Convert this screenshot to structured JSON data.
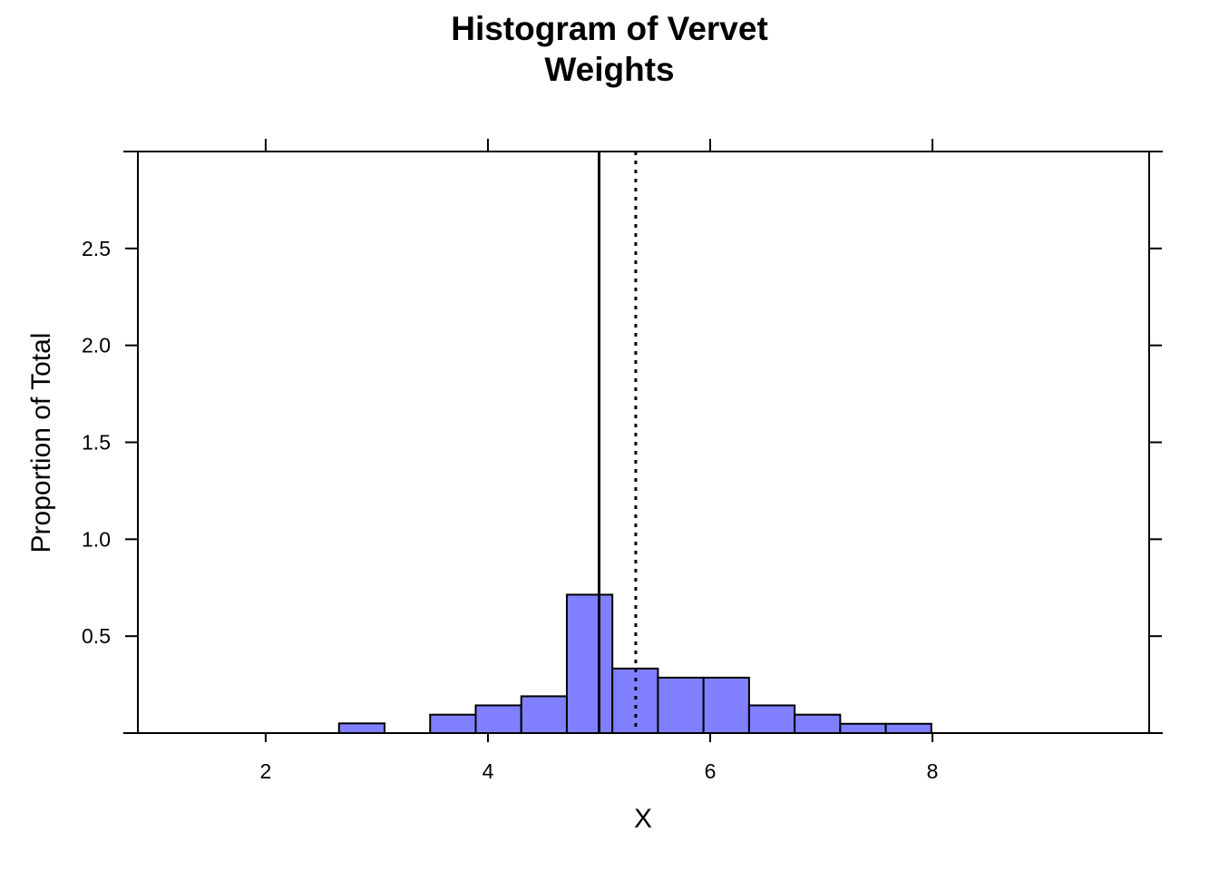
{
  "chart_data": {
    "type": "bar",
    "title_lines": [
      "Histogram of Vervet",
      "Weights"
    ],
    "xlabel": "X",
    "ylabel": "Proportion of Total",
    "xlim": [
      0.85,
      9.95
    ],
    "ylim": [
      0,
      3.0
    ],
    "x_ticks": [
      2,
      4,
      6,
      8
    ],
    "y_ticks": [
      0.5,
      1.0,
      1.5,
      2.0,
      2.5
    ],
    "y_tick_labels": [
      "0.5",
      "1.0",
      "1.5",
      "2.0",
      "2.5"
    ],
    "bins": [
      {
        "x0": 1.34,
        "x1": 1.75,
        "value": 0.0
      },
      {
        "x0": 1.75,
        "x1": 2.16,
        "value": 0.0
      },
      {
        "x0": 2.16,
        "x1": 2.57,
        "value": 0.0
      },
      {
        "x0": 2.57,
        "x1": 2.66,
        "value": 0.0
      },
      {
        "x0": 2.66,
        "x1": 3.07,
        "value": 0.05
      },
      {
        "x0": 3.07,
        "x1": 3.48,
        "value": 0.0
      },
      {
        "x0": 3.48,
        "x1": 3.89,
        "value": 0.095
      },
      {
        "x0": 3.89,
        "x1": 4.3,
        "value": 0.143
      },
      {
        "x0": 4.3,
        "x1": 4.71,
        "value": 0.19
      },
      {
        "x0": 4.71,
        "x1": 5.12,
        "value": 0.714
      },
      {
        "x0": 5.12,
        "x1": 5.53,
        "value": 0.333
      },
      {
        "x0": 5.53,
        "x1": 5.94,
        "value": 0.286
      },
      {
        "x0": 5.94,
        "x1": 6.35,
        "value": 0.286
      },
      {
        "x0": 6.35,
        "x1": 6.76,
        "value": 0.143
      },
      {
        "x0": 6.76,
        "x1": 7.17,
        "value": 0.095
      },
      {
        "x0": 7.17,
        "x1": 7.58,
        "value": 0.048
      },
      {
        "x0": 7.58,
        "x1": 7.99,
        "value": 0.048
      },
      {
        "x0": 7.99,
        "x1": 8.4,
        "value": 0.0
      },
      {
        "x0": 8.4,
        "x1": 8.81,
        "value": 0.0
      },
      {
        "x0": 8.81,
        "x1": 9.3,
        "value": 0.0
      }
    ],
    "reference_lines": [
      {
        "x": 5.0,
        "style": "solid"
      },
      {
        "x": 5.33,
        "style": "dotted"
      }
    ],
    "bar_color": "#8080ff",
    "grid": false,
    "legend": "none"
  }
}
